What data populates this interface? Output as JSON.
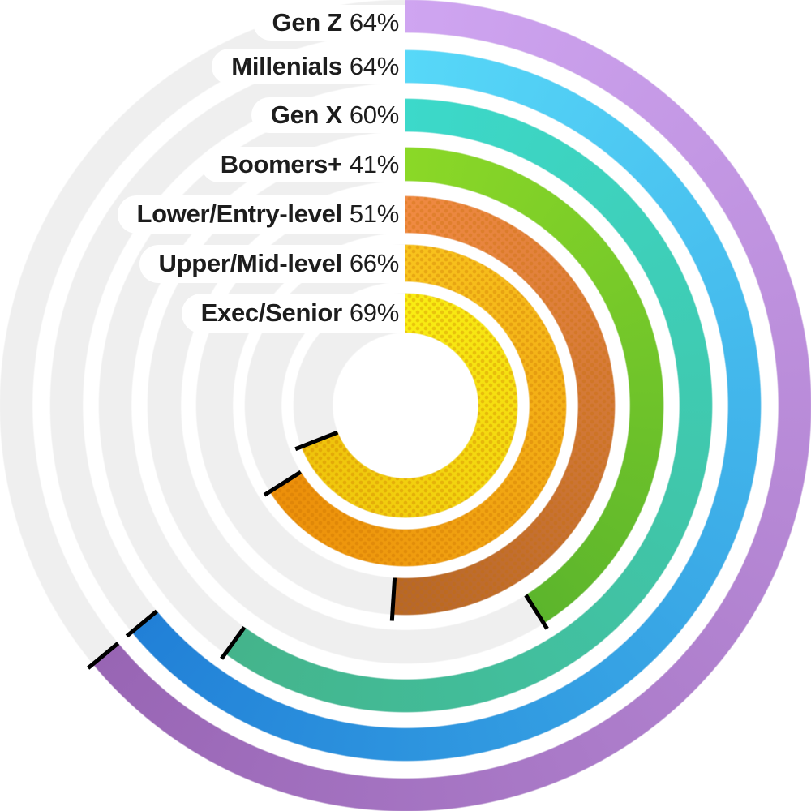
{
  "page": {
    "background": "#ffffff"
  },
  "chart_data": {
    "type": "radial_progress_rings",
    "unit": "%",
    "max_value": 100,
    "start_angle": "12-o-clock",
    "direction": "clockwise",
    "rings_order": "outermost-to-innermost",
    "track_color": "#efefef",
    "label_text_color": "#1d1d1d",
    "end_cap_color": "#000000",
    "dot_pattern_color": "rgba(197,108,0,0.30)",
    "series": [
      {
        "label": "Gen Z",
        "value": 64,
        "pct_text": "64%",
        "color_start": "#cfa5f1",
        "color_end": "#9865b4",
        "texture": "solid"
      },
      {
        "label": "Millenials",
        "value": 64,
        "pct_text": "64%",
        "color_start": "#57d8f8",
        "color_end": "#2180d7",
        "texture": "solid"
      },
      {
        "label": "Gen X",
        "value": 60,
        "pct_text": "60%",
        "color_start": "#3cd9ca",
        "color_end": "#44b48b",
        "texture": "solid"
      },
      {
        "label": "Boomers+",
        "value": 41,
        "pct_text": "41%",
        "color_start": "#8bd827",
        "color_end": "#5cb52c",
        "texture": "solid"
      },
      {
        "label": "Lower/Entry-level",
        "value": 51,
        "pct_text": "51%",
        "color_start": "#f08a42",
        "color_end": "#b5672b",
        "texture": "dots"
      },
      {
        "label": "Upper/Mid-level",
        "value": 66,
        "pct_text": "66%",
        "color_start": "#f8c31d",
        "color_end": "#ec8f0a",
        "texture": "dots"
      },
      {
        "label": "Exec/Senior",
        "value": 69,
        "pct_text": "69%",
        "color_start": "#f9ed13",
        "color_end": "#efc30c",
        "texture": "dots"
      }
    ]
  }
}
